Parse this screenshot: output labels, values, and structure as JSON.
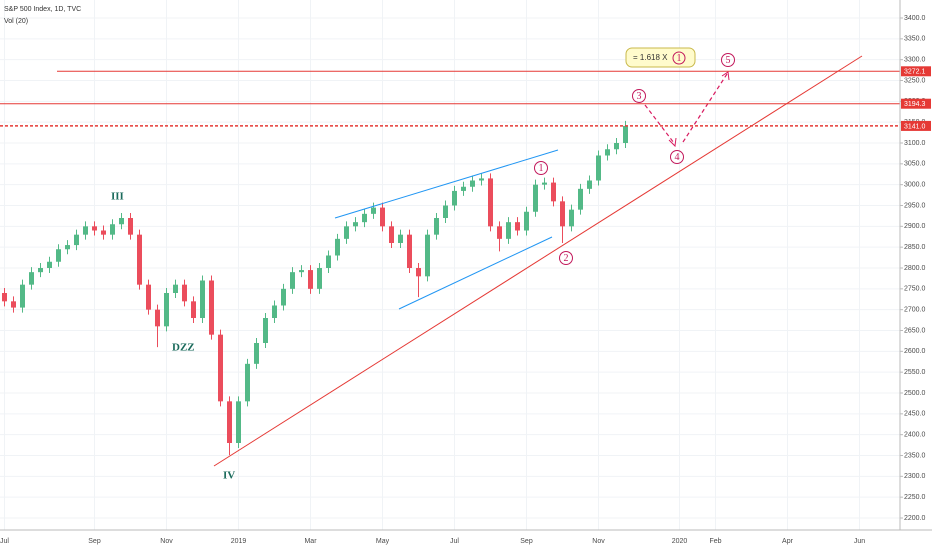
{
  "header": {
    "title": "S&P 500 Index, 1D, TVC",
    "indicator": "Vol (20)"
  },
  "chart_data": {
    "type": "candlestick",
    "categories": [
      "Jul",
      null,
      null,
      null,
      null,
      null,
      null,
      null,
      null,
      null,
      "Sep",
      null,
      null,
      null,
      null,
      null,
      null,
      null,
      "Nov",
      null,
      null,
      null,
      null,
      null,
      null,
      null,
      "2019",
      null,
      null,
      null,
      null,
      null,
      null,
      null,
      "Mar",
      null,
      null,
      null,
      null,
      null,
      null,
      null,
      "May",
      null,
      null,
      null,
      null,
      null,
      null,
      null,
      "Jul",
      null,
      null,
      null,
      null,
      null,
      null,
      null,
      "Sep",
      null,
      null,
      null,
      null,
      null,
      null,
      null,
      "Nov",
      null,
      null,
      null,
      null,
      null,
      null,
      null,
      null,
      "2020",
      null,
      null,
      null,
      "Feb",
      null,
      null,
      null,
      null,
      null,
      null,
      null,
      "Apr",
      null,
      null,
      null,
      null,
      null,
      null,
      null,
      "Jun",
      null,
      null,
      null,
      null
    ],
    "open": [
      2740,
      2720,
      2705,
      2760,
      2790,
      2800,
      2815,
      2845,
      2855,
      2880,
      2900,
      2890,
      2880,
      2905,
      2920,
      2880,
      2760,
      2700,
      2660,
      2740,
      2760,
      2720,
      2680,
      2770,
      2640,
      2480,
      2380,
      2480,
      2570,
      2620,
      2680,
      2710,
      2750,
      2790,
      2795,
      2750,
      2800,
      2830,
      2870,
      2900,
      2910,
      2930,
      2945,
      2900,
      2860,
      2880,
      2800,
      2780,
      2880,
      2920,
      2950,
      2985,
      2995,
      3010,
      3015,
      2900,
      2870,
      2910,
      2890,
      2935,
      3000,
      3005,
      2960,
      2900,
      2940,
      2990,
      3010,
      3070,
      3085,
      3100,
      null,
      null,
      null,
      null,
      null,
      null,
      null,
      null,
      null,
      null,
      null,
      null,
      null,
      null,
      null,
      null,
      null,
      null,
      null,
      null,
      null,
      null,
      null,
      null,
      null,
      null,
      null,
      null,
      null,
      null
    ],
    "high": [
      2752,
      2732,
      2772,
      2802,
      2812,
      2827,
      2857,
      2867,
      2892,
      2912,
      2912,
      2902,
      2917,
      2932,
      2932,
      2892,
      2772,
      2712,
      2752,
      2772,
      2772,
      2732,
      2782,
      2782,
      2652,
      2492,
      2492,
      2582,
      2632,
      2692,
      2722,
      2762,
      2802,
      2807,
      2807,
      2812,
      2842,
      2882,
      2912,
      2922,
      2942,
      2957,
      2957,
      2912,
      2892,
      2892,
      2812,
      2892,
      2932,
      2962,
      2997,
      3007,
      3022,
      3027,
      3027,
      2912,
      2922,
      2922,
      2947,
      3012,
      3017,
      3017,
      2972,
      2952,
      3002,
      3022,
      3082,
      3097,
      3112,
      3153,
      null,
      null,
      null,
      null,
      null,
      null,
      null,
      null,
      null,
      null,
      null,
      null,
      null,
      null,
      null,
      null,
      null,
      null,
      null,
      null,
      null,
      null,
      null,
      null,
      null,
      null,
      null,
      null,
      null,
      null
    ],
    "low": [
      2708,
      2693,
      2693,
      2748,
      2778,
      2788,
      2803,
      2833,
      2843,
      2868,
      2878,
      2868,
      2868,
      2893,
      2868,
      2748,
      2688,
      2610,
      2648,
      2728,
      2708,
      2668,
      2668,
      2628,
      2468,
      2351,
      2368,
      2468,
      2558,
      2608,
      2668,
      2698,
      2738,
      2778,
      2738,
      2738,
      2788,
      2818,
      2858,
      2888,
      2898,
      2918,
      2888,
      2848,
      2848,
      2788,
      2730,
      2768,
      2868,
      2908,
      2938,
      2973,
      2983,
      2998,
      2888,
      2840,
      2858,
      2878,
      2878,
      2923,
      2988,
      2948,
      2860,
      2888,
      2928,
      2978,
      2998,
      3058,
      3073,
      3088,
      null,
      null,
      null,
      null,
      null,
      null,
      null,
      null,
      null,
      null,
      null,
      null,
      null,
      null,
      null,
      null,
      null,
      null,
      null,
      null,
      null,
      null,
      null,
      null,
      null,
      null,
      null,
      null,
      null,
      null
    ],
    "close": [
      2720,
      2705,
      2760,
      2790,
      2800,
      2815,
      2845,
      2855,
      2880,
      2900,
      2890,
      2880,
      2905,
      2920,
      2880,
      2760,
      2700,
      2660,
      2740,
      2760,
      2720,
      2680,
      2770,
      2640,
      2480,
      2380,
      2480,
      2570,
      2620,
      2680,
      2710,
      2750,
      2790,
      2795,
      2750,
      2800,
      2830,
      2870,
      2900,
      2910,
      2930,
      2945,
      2900,
      2860,
      2880,
      2800,
      2780,
      2880,
      2920,
      2950,
      2985,
      2995,
      3010,
      3015,
      2900,
      2870,
      2910,
      2890,
      2935,
      3000,
      3005,
      2960,
      2900,
      2940,
      2990,
      3010,
      3070,
      3085,
      3100,
      3141,
      null,
      null,
      null,
      null,
      null,
      null,
      null,
      null,
      null,
      null,
      null,
      null,
      null,
      null,
      null,
      null,
      null,
      null,
      null,
      null,
      null,
      null,
      null,
      null,
      null,
      null,
      null,
      null,
      null,
      null
    ],
    "up_color": "#53b987",
    "down_color": "#eb4d5c",
    "ylim": [
      2171.2,
      3443.2
    ],
    "yticks": [
      {
        "value": 3400,
        "label": "3400.0"
      },
      {
        "value": 3350,
        "label": "3350.0"
      },
      {
        "value": 3300,
        "label": "3300.0"
      },
      {
        "value": 3250,
        "label": "3250.0"
      },
      {
        "value": 3200,
        "label": "3200.0"
      },
      {
        "value": 3150,
        "label": "3150.0"
      },
      {
        "value": 3100,
        "label": "3100.0"
      },
      {
        "value": 3050,
        "label": "3050.0"
      },
      {
        "value": 3000,
        "label": "3000.0"
      },
      {
        "value": 2950,
        "label": "2950.0"
      },
      {
        "value": 2900,
        "label": "2900.0"
      },
      {
        "value": 2850,
        "label": "2850.0"
      },
      {
        "value": 2800,
        "label": "2800.0"
      },
      {
        "value": 2750,
        "label": "2750.0"
      },
      {
        "value": 2700,
        "label": "2700.0"
      },
      {
        "value": 2650,
        "label": "2650.0"
      },
      {
        "value": 2600,
        "label": "2600.0"
      },
      {
        "value": 2550,
        "label": "2550.0"
      },
      {
        "value": 2500,
        "label": "2500.0"
      },
      {
        "value": 2450,
        "label": "2450.0"
      },
      {
        "value": 2400,
        "label": "2400.0"
      },
      {
        "value": 2350,
        "label": "2350.0"
      },
      {
        "value": 2300,
        "label": "2300.0"
      },
      {
        "value": 2250,
        "label": "2250.0"
      },
      {
        "value": 2200,
        "label": "2200.0"
      }
    ],
    "grid": true,
    "hlines": [
      {
        "value": 3272.1,
        "label": "3272.1",
        "dashed": false
      },
      {
        "value": 3194.3,
        "label": "3194.3",
        "dashed": false
      },
      {
        "value": 3141.0,
        "label": "3141.0",
        "dashed": true
      }
    ],
    "hline_color": "#e53935"
  },
  "annotations": {
    "wave_labels": [
      "III",
      "DZZ",
      "IV"
    ],
    "count_labels": [
      "1",
      "2",
      "3",
      "4",
      "5"
    ],
    "fib_label": "= 1.618  X",
    "fib_ref": "1"
  }
}
